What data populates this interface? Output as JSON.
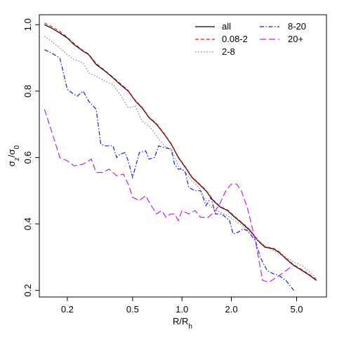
{
  "chart_data": {
    "type": "line",
    "xlabel": "R/R_h",
    "ylabel": "σ_z/σ_0",
    "xscale": "log",
    "xlim": [
      0.135,
      7.6
    ],
    "ylim": [
      0.18,
      1.03
    ],
    "xticks": [
      {
        "value": 0.2,
        "label": "0.2"
      },
      {
        "value": 0.5,
        "label": "0.5"
      },
      {
        "value": 1.0,
        "label": "1.0"
      },
      {
        "value": 2.0,
        "label": "2.0"
      },
      {
        "value": 5.0,
        "label": "5.0"
      }
    ],
    "yticks": [
      {
        "value": 0.2,
        "label": "0.2"
      },
      {
        "value": 0.4,
        "label": "0.4"
      },
      {
        "value": 0.6,
        "label": "0.6"
      },
      {
        "value": 0.8,
        "label": "0.8"
      },
      {
        "value": 1.0,
        "label": "1.0"
      }
    ],
    "grid": false,
    "legend_position": "top-right",
    "series": [
      {
        "name": "all",
        "color": "#000000",
        "dash": "solid",
        "points": [
          [
            0.145,
            1.0
          ],
          [
            0.16,
            0.99
          ],
          [
            0.18,
            0.975
          ],
          [
            0.2,
            0.96
          ],
          [
            0.22,
            0.94
          ],
          [
            0.25,
            0.92
          ],
          [
            0.27,
            0.91
          ],
          [
            0.3,
            0.88
          ],
          [
            0.34,
            0.86
          ],
          [
            0.38,
            0.84
          ],
          [
            0.42,
            0.82
          ],
          [
            0.47,
            0.8
          ],
          [
            0.52,
            0.77
          ],
          [
            0.57,
            0.75
          ],
          [
            0.63,
            0.72
          ],
          [
            0.7,
            0.7
          ],
          [
            0.78,
            0.67
          ],
          [
            0.86,
            0.64
          ],
          [
            0.95,
            0.6
          ],
          [
            1.05,
            0.57
          ],
          [
            1.15,
            0.54
          ],
          [
            1.27,
            0.52
          ],
          [
            1.4,
            0.5
          ],
          [
            1.55,
            0.47
          ],
          [
            1.72,
            0.45
          ],
          [
            1.9,
            0.44
          ],
          [
            2.1,
            0.42
          ],
          [
            2.35,
            0.4
          ],
          [
            2.6,
            0.38
          ],
          [
            2.9,
            0.35
          ],
          [
            3.2,
            0.33
          ],
          [
            3.6,
            0.325
          ],
          [
            3.9,
            0.315
          ],
          [
            4.3,
            0.295
          ],
          [
            4.8,
            0.275
          ],
          [
            5.4,
            0.26
          ],
          [
            6.0,
            0.245
          ],
          [
            6.6,
            0.23
          ]
        ]
      },
      {
        "name": "0.08-2",
        "color": "#e0201a",
        "dash": "dashed",
        "points": [
          [
            0.145,
            1.005
          ],
          [
            0.16,
            0.995
          ],
          [
            0.18,
            0.98
          ],
          [
            0.2,
            0.962
          ],
          [
            0.22,
            0.943
          ],
          [
            0.25,
            0.922
          ],
          [
            0.27,
            0.912
          ],
          [
            0.3,
            0.883
          ],
          [
            0.34,
            0.862
          ],
          [
            0.38,
            0.842
          ],
          [
            0.42,
            0.823
          ],
          [
            0.47,
            0.802
          ],
          [
            0.52,
            0.772
          ],
          [
            0.57,
            0.752
          ],
          [
            0.63,
            0.722
          ],
          [
            0.7,
            0.702
          ],
          [
            0.78,
            0.672
          ],
          [
            0.86,
            0.642
          ],
          [
            0.95,
            0.602
          ],
          [
            1.05,
            0.572
          ],
          [
            1.15,
            0.542
          ],
          [
            1.27,
            0.522
          ],
          [
            1.4,
            0.502
          ],
          [
            1.55,
            0.472
          ],
          [
            1.72,
            0.452
          ],
          [
            1.9,
            0.442
          ],
          [
            2.1,
            0.422
          ],
          [
            2.35,
            0.402
          ],
          [
            2.6,
            0.382
          ],
          [
            2.9,
            0.352
          ],
          [
            3.2,
            0.332
          ],
          [
            3.6,
            0.327
          ],
          [
            3.9,
            0.317
          ],
          [
            4.3,
            0.297
          ],
          [
            4.8,
            0.277
          ],
          [
            5.4,
            0.262
          ],
          [
            6.0,
            0.247
          ],
          [
            6.6,
            0.232
          ]
        ]
      },
      {
        "name": "2-8",
        "color": "#808080",
        "dash": "dotted",
        "points": [
          [
            0.145,
            0.965
          ],
          [
            0.16,
            0.95
          ],
          [
            0.18,
            0.93
          ],
          [
            0.2,
            0.91
          ],
          [
            0.22,
            0.895
          ],
          [
            0.25,
            0.885
          ],
          [
            0.27,
            0.855
          ],
          [
            0.3,
            0.845
          ],
          [
            0.34,
            0.83
          ],
          [
            0.38,
            0.82
          ],
          [
            0.42,
            0.79
          ],
          [
            0.47,
            0.75
          ],
          [
            0.52,
            0.755
          ],
          [
            0.57,
            0.71
          ],
          [
            0.63,
            0.695
          ],
          [
            0.7,
            0.665
          ],
          [
            0.78,
            0.635
          ],
          [
            0.86,
            0.625
          ],
          [
            0.95,
            0.575
          ],
          [
            1.05,
            0.555
          ],
          [
            1.15,
            0.53
          ],
          [
            1.27,
            0.51
          ],
          [
            1.4,
            0.47
          ],
          [
            1.55,
            0.445
          ],
          [
            1.72,
            0.435
          ],
          [
            1.9,
            0.425
          ],
          [
            2.1,
            0.41
          ],
          [
            2.35,
            0.395
          ],
          [
            2.6,
            0.375
          ],
          [
            2.9,
            0.35
          ],
          [
            3.2,
            0.335
          ],
          [
            3.6,
            0.32
          ],
          [
            3.9,
            0.31
          ],
          [
            4.3,
            0.3
          ],
          [
            4.8,
            0.285
          ],
          [
            5.4,
            0.275
          ],
          [
            6.0,
            0.255
          ],
          [
            6.6,
            0.235
          ]
        ]
      },
      {
        "name": "8-20",
        "color": "#1a1adb",
        "dash": "dashdot",
        "points": [
          [
            0.145,
            0.925
          ],
          [
            0.16,
            0.915
          ],
          [
            0.18,
            0.9
          ],
          [
            0.2,
            0.805
          ],
          [
            0.22,
            0.79
          ],
          [
            0.23,
            0.785
          ],
          [
            0.25,
            0.8
          ],
          [
            0.27,
            0.77
          ],
          [
            0.3,
            0.745
          ],
          [
            0.32,
            0.64
          ],
          [
            0.34,
            0.635
          ],
          [
            0.38,
            0.635
          ],
          [
            0.4,
            0.6
          ],
          [
            0.42,
            0.61
          ],
          [
            0.45,
            0.615
          ],
          [
            0.47,
            0.59
          ],
          [
            0.5,
            0.54
          ],
          [
            0.55,
            0.615
          ],
          [
            0.6,
            0.62
          ],
          [
            0.63,
            0.595
          ],
          [
            0.68,
            0.6
          ],
          [
            0.72,
            0.635
          ],
          [
            0.78,
            0.63
          ],
          [
            0.86,
            0.625
          ],
          [
            0.9,
            0.58
          ],
          [
            0.95,
            0.565
          ],
          [
            1.0,
            0.565
          ],
          [
            1.05,
            0.555
          ],
          [
            1.1,
            0.51
          ],
          [
            1.2,
            0.5
          ],
          [
            1.3,
            0.5
          ],
          [
            1.4,
            0.455
          ],
          [
            1.5,
            0.48
          ],
          [
            1.6,
            0.43
          ],
          [
            1.75,
            0.43
          ],
          [
            1.95,
            0.41
          ],
          [
            2.05,
            0.37
          ],
          [
            2.2,
            0.375
          ],
          [
            2.35,
            0.385
          ],
          [
            2.5,
            0.38
          ],
          [
            2.8,
            0.35
          ],
          [
            3.0,
            0.3
          ],
          [
            3.3,
            0.26
          ],
          [
            3.6,
            0.25
          ],
          [
            3.9,
            0.245
          ],
          [
            4.3,
            0.23
          ],
          [
            4.8,
            0.2
          ]
        ]
      },
      {
        "name": "20+",
        "color": "#b426e0",
        "dash": "longdash",
        "points": [
          [
            0.145,
            0.745
          ],
          [
            0.165,
            0.66
          ],
          [
            0.18,
            0.6
          ],
          [
            0.2,
            0.59
          ],
          [
            0.22,
            0.575
          ],
          [
            0.25,
            0.58
          ],
          [
            0.28,
            0.595
          ],
          [
            0.3,
            0.555
          ],
          [
            0.33,
            0.555
          ],
          [
            0.36,
            0.565
          ],
          [
            0.4,
            0.545
          ],
          [
            0.44,
            0.55
          ],
          [
            0.47,
            0.52
          ],
          [
            0.5,
            0.48
          ],
          [
            0.55,
            0.47
          ],
          [
            0.6,
            0.485
          ],
          [
            0.65,
            0.455
          ],
          [
            0.7,
            0.43
          ],
          [
            0.75,
            0.44
          ],
          [
            0.8,
            0.42
          ],
          [
            0.85,
            0.43
          ],
          [
            0.9,
            0.43
          ],
          [
            0.95,
            0.41
          ],
          [
            1.0,
            0.44
          ],
          [
            1.1,
            0.43
          ],
          [
            1.2,
            0.44
          ],
          [
            1.3,
            0.42
          ],
          [
            1.45,
            0.42
          ],
          [
            1.6,
            0.44
          ],
          [
            1.7,
            0.46
          ],
          [
            1.85,
            0.5
          ],
          [
            2.0,
            0.52
          ],
          [
            2.15,
            0.52
          ],
          [
            2.3,
            0.5
          ],
          [
            2.5,
            0.45
          ],
          [
            2.8,
            0.35
          ],
          [
            3.1,
            0.23
          ],
          [
            3.4,
            0.225
          ],
          [
            3.8,
            0.24
          ],
          [
            4.2,
            0.255
          ],
          [
            4.6,
            0.27
          ]
        ]
      }
    ]
  }
}
